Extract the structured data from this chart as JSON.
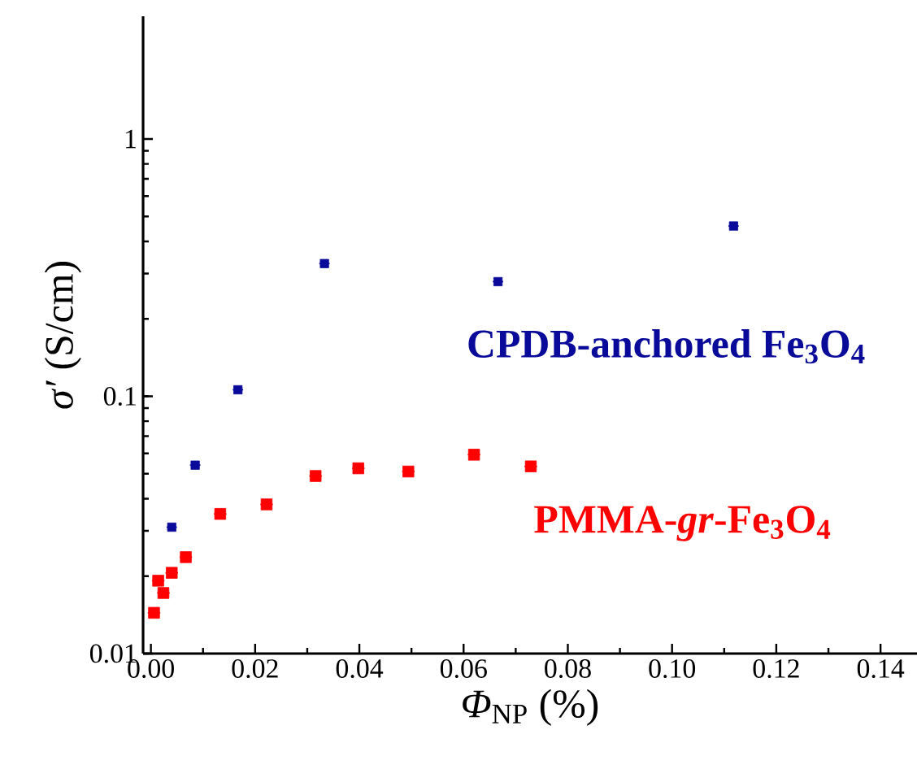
{
  "chart_data": {
    "type": "scatter",
    "xlabel": "*Φ*$_{NP}$ (%)",
    "ylabel": "*σ′* (S/cm)",
    "log": "y",
    "marker": "square",
    "legend": false,
    "grid": false,
    "xlim": [
      -0.0015,
      0.147
    ],
    "ylim": [
      0.01,
      3
    ],
    "xticks": [
      {
        "value": 0,
        "label": "0.00"
      },
      {
        "value": 0.02,
        "label": "0.02"
      },
      {
        "value": 0.04,
        "label": "0.04"
      },
      {
        "value": 0.06,
        "label": "0.06"
      },
      {
        "value": 0.08,
        "label": "0.08"
      },
      {
        "value": 0.1,
        "label": "0.10"
      },
      {
        "value": 0.12,
        "label": "0.12"
      },
      {
        "value": 0.14,
        "label": "0.14"
      }
    ],
    "yticks": [
      0.01,
      0.1,
      1
    ],
    "series": [
      {
        "name": "CPDB-anchored Fe$_{3}$O$_{4}$",
        "color": "#0a0a9a",
        "x": [
          0.004,
          0.0085,
          0.0167,
          0.0333,
          0.0666,
          0.1118
        ],
        "values": [
          0.031,
          0.054,
          0.106,
          0.328,
          0.279,
          0.459
        ],
        "xerrors": [
          0.001,
          0.001,
          0.001,
          0.001,
          0.001,
          0.001
        ]
      },
      {
        "name": "PMMA-*gr*-Fe$_{3}$O$_{4}$",
        "color": "#ff0000",
        "x": [
          0.0006,
          0.0014,
          0.0024,
          0.004,
          0.0067,
          0.0133,
          0.0222,
          0.0316,
          0.0398,
          0.0494,
          0.062,
          0.0729
        ],
        "values": [
          0.0144,
          0.0192,
          0.0172,
          0.0206,
          0.0237,
          0.0349,
          0.038,
          0.049,
          0.0525,
          0.051,
          0.0593,
          0.0534
        ],
        "xerrors": [
          0.0012,
          0.0012,
          0.0012,
          0.0012,
          0.0012,
          0.0012,
          0.0012,
          0.0012,
          0.0012,
          0.0012,
          0.0012,
          0.0012
        ]
      }
    ]
  }
}
